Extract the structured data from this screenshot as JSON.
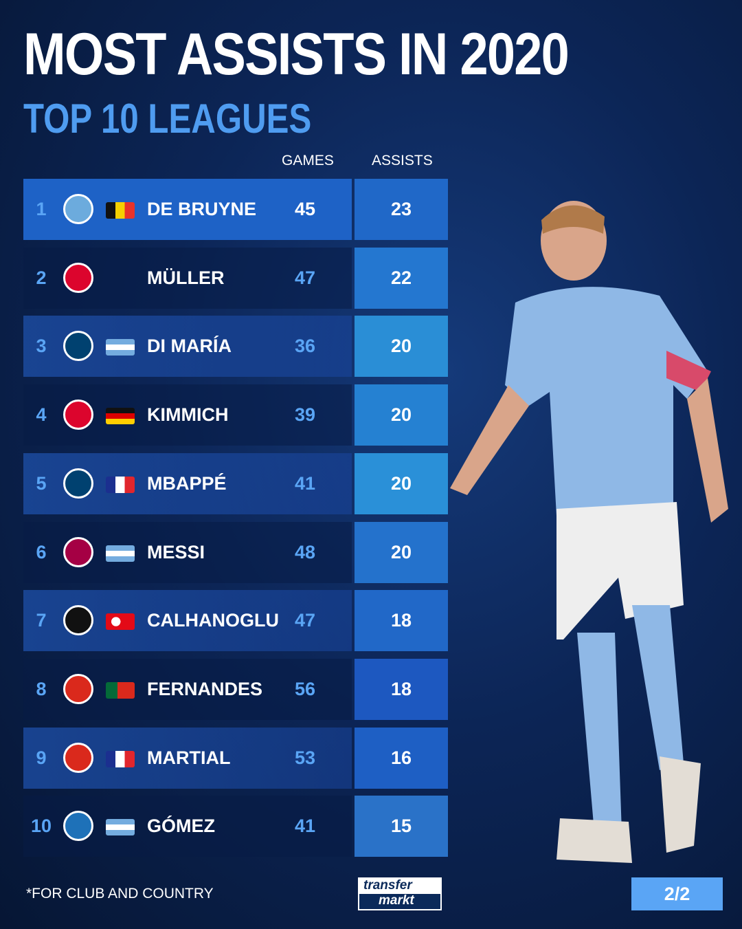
{
  "title": "MOST ASSISTS IN 2020",
  "subtitle": "TOP 10 LEAGUES",
  "columns": {
    "games": "GAMES",
    "assists": "ASSISTS"
  },
  "rows": [
    {
      "rank": "1",
      "club": "manchester-city",
      "flag": "belgium",
      "name": "DE BRUYNE",
      "games": "45",
      "assists": "23"
    },
    {
      "rank": "2",
      "club": "bayern-munich",
      "flag": "",
      "name": "MÜLLER",
      "games": "47",
      "assists": "22"
    },
    {
      "rank": "3",
      "club": "psg",
      "flag": "argentina",
      "name": "DI MARÍA",
      "games": "36",
      "assists": "20"
    },
    {
      "rank": "4",
      "club": "bayern-munich",
      "flag": "germany",
      "name": "KIMMICH",
      "games": "39",
      "assists": "20"
    },
    {
      "rank": "5",
      "club": "psg",
      "flag": "france",
      "name": "MBAPPÉ",
      "games": "41",
      "assists": "20"
    },
    {
      "rank": "6",
      "club": "barcelona",
      "flag": "argentina",
      "name": "MESSI",
      "games": "48",
      "assists": "20"
    },
    {
      "rank": "7",
      "club": "ac-milan",
      "flag": "turkey",
      "name": "CALHANOGLU",
      "games": "47",
      "assists": "18"
    },
    {
      "rank": "8",
      "club": "sporting-manchester-united",
      "flag": "portugal",
      "name": "FERNANDES",
      "games": "56",
      "assists": "18"
    },
    {
      "rank": "9",
      "club": "manchester-united",
      "flag": "france",
      "name": "MARTIAL",
      "games": "53",
      "assists": "16"
    },
    {
      "rank": "10",
      "club": "atalanta",
      "flag": "argentina",
      "name": "GÓMEZ",
      "games": "41",
      "assists": "15"
    }
  ],
  "footnote": "*FOR CLUB AND COUNTRY",
  "brand": {
    "line1": "transfer",
    "line2": "markt"
  },
  "page": "2/2",
  "colors": {
    "accent": "#5aa5f5",
    "highlight": "#1e62c6",
    "background": "#0c2556"
  }
}
